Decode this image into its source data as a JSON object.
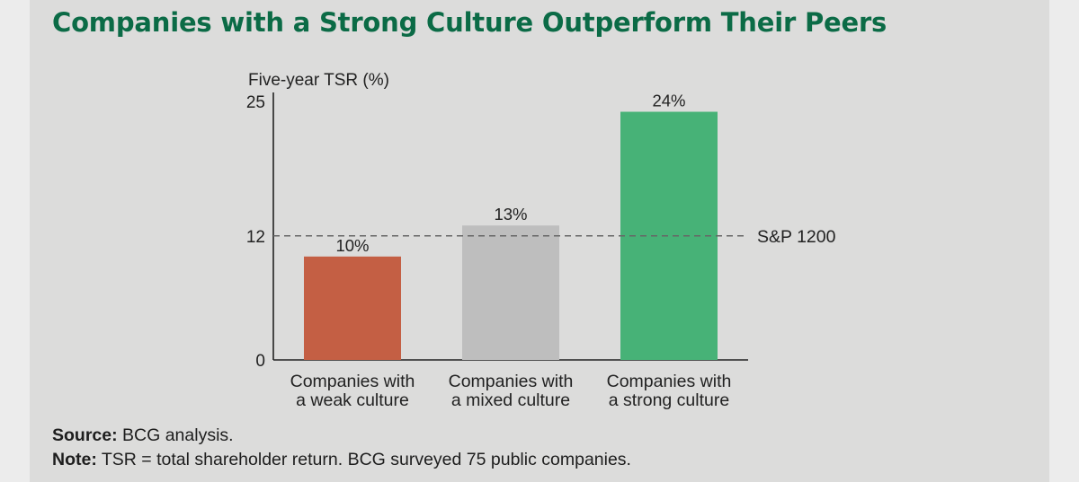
{
  "title": "Companies with a Strong Culture Outperform Their Peers",
  "colors": {
    "title": "#0b6b46",
    "background": "#dcdcdb",
    "text": "#222222"
  },
  "chart_data": {
    "type": "bar",
    "ylabel": "Five-year TSR (%)",
    "ylim": [
      0,
      25
    ],
    "yticks": [
      0,
      12,
      25
    ],
    "grid": false,
    "categories": [
      [
        "Companies with",
        "a weak culture"
      ],
      [
        "Companies with",
        "a mixed culture"
      ],
      [
        "Companies with",
        "a strong culture"
      ]
    ],
    "values": [
      10,
      13,
      24
    ],
    "data_labels": [
      "10%",
      "13%",
      "24%"
    ],
    "bar_colors": [
      "#c45f44",
      "#bebebe",
      "#47b277"
    ],
    "reference_line": {
      "label": "S&P 1200",
      "value": 12,
      "style": "dashed"
    }
  },
  "footer": {
    "source_label": "Source:",
    "source_text": " BCG analysis.",
    "note_label": "Note:",
    "note_text": " TSR = total shareholder return. BCG surveyed 75 public companies."
  }
}
